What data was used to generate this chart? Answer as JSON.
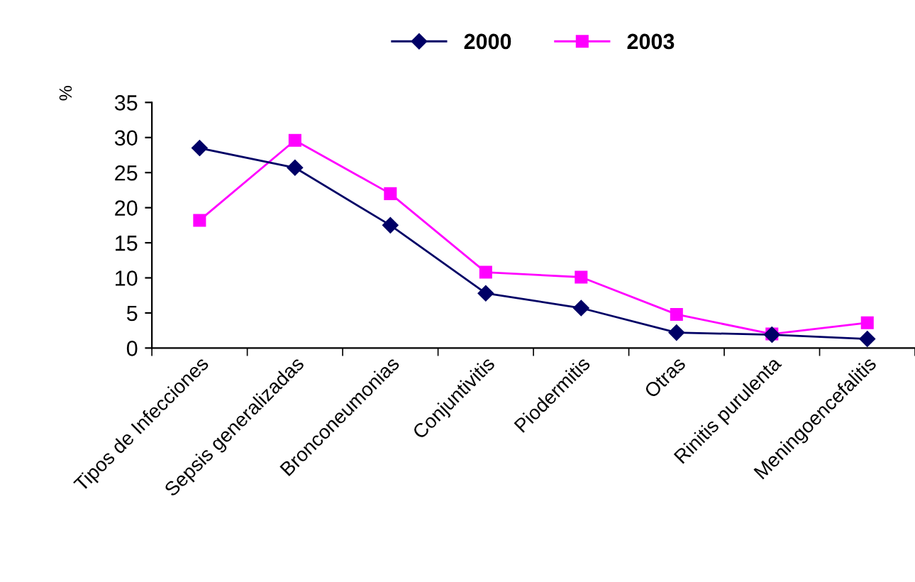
{
  "chart_data": {
    "type": "line",
    "ylabel": "%",
    "categories": [
      "Tipos de Infecciones",
      "Sepsis generalizadas",
      "Bronconeumonias",
      "Conjuntivitis",
      "Piodermitis",
      "Otras",
      "Rinitis purulenta",
      "Meningoencefalitis"
    ],
    "series": [
      {
        "name": "2000",
        "color": "#000066",
        "marker": "diamond",
        "values": [
          28.5,
          25.7,
          17.5,
          7.8,
          5.7,
          2.2,
          1.9,
          1.3
        ]
      },
      {
        "name": "2003",
        "color": "#ff00ff",
        "marker": "square",
        "values": [
          18.2,
          29.6,
          22.0,
          10.8,
          10.1,
          4.8,
          2.0,
          3.6
        ]
      }
    ],
    "ylim": [
      0,
      35
    ],
    "yticks": [
      0,
      5,
      10,
      15,
      20,
      25,
      30,
      35
    ],
    "grid": false,
    "legend": "top",
    "line_style": "solid"
  }
}
